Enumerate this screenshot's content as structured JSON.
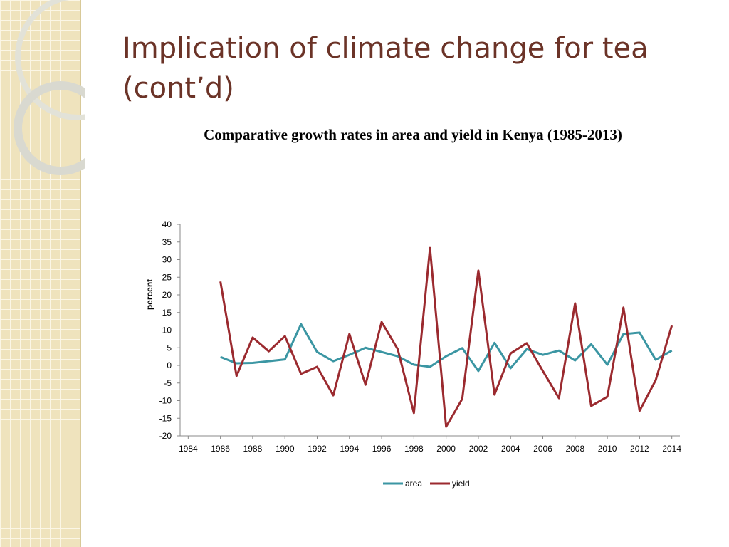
{
  "slide_title": "Implication of climate change for tea (cont’d)",
  "chart_data": {
    "type": "line",
    "title": "Comparative growth rates in area and yield in Kenya (1985-2013)",
    "ylabel": "percent",
    "x": [
      1986,
      1987,
      1988,
      1989,
      1990,
      1991,
      1992,
      1993,
      1994,
      1995,
      1996,
      1997,
      1998,
      1999,
      2000,
      2001,
      2002,
      2003,
      2004,
      2005,
      2006,
      2007,
      2008,
      2009,
      2010,
      2011,
      2012,
      2013,
      2014
    ],
    "series": [
      {
        "name": "area",
        "color": "#3b96a3",
        "values": [
          2.4,
          0.6,
          0.7,
          1.2,
          1.7,
          11.7,
          3.8,
          1.2,
          3.0,
          5.0,
          3.8,
          2.6,
          0.2,
          -0.4,
          2.6,
          4.9,
          -1.6,
          6.4,
          -0.8,
          4.6,
          3.0,
          4.2,
          1.4,
          6.0,
          0.2,
          8.9,
          9.3,
          1.6,
          4.2
        ]
      },
      {
        "name": "yield",
        "color": "#9b2a2f",
        "values": [
          23.8,
          -3.0,
          7.9,
          4.0,
          8.3,
          -2.4,
          -0.4,
          -8.5,
          8.9,
          -5.5,
          12.3,
          4.6,
          -13.5,
          33.3,
          -17.4,
          -9.5,
          26.9,
          -8.3,
          3.4,
          6.3,
          -1.6,
          -9.3,
          17.6,
          -11.5,
          -8.9,
          16.4,
          -12.9,
          -4.2,
          11.3
        ]
      }
    ],
    "xlim": [
      1983.5,
      2014.5
    ],
    "xticks": [
      1984,
      1986,
      1988,
      1990,
      1992,
      1994,
      1996,
      1998,
      2000,
      2002,
      2004,
      2006,
      2008,
      2010,
      2012,
      2014
    ],
    "ylim": [
      -20,
      40
    ],
    "yticks": [
      -20,
      -15,
      -10,
      -5,
      0,
      5,
      10,
      15,
      20,
      25,
      30,
      35,
      40
    ],
    "legend": "bottom"
  }
}
